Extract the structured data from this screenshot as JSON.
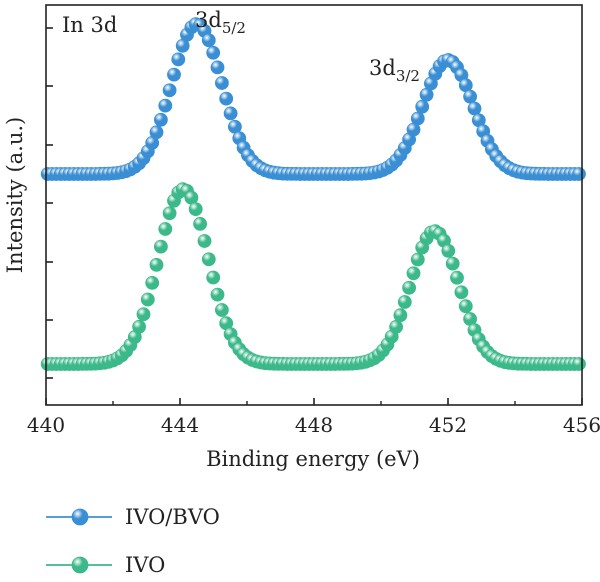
{
  "chart_data": {
    "type": "scatter",
    "panel_label": "In 3d",
    "xlabel": "Binding energy (eV)",
    "ylabel": "Intensity (a.u.)",
    "xlim": [
      440,
      456
    ],
    "x_ticks": [
      "440",
      "444",
      "448",
      "452",
      "456"
    ],
    "y_ticks_visible": false,
    "grid": false,
    "legend_position": "bottom",
    "series": [
      {
        "name": "IVO/BVO",
        "color": "#3a8fd4",
        "baseline": 0.0,
        "peaks": [
          {
            "label": "3d",
            "label_sub": "5/2",
            "center": 444.5,
            "height": 1.0,
            "width": 0.75
          },
          {
            "label": "3d",
            "label_sub": "3/2",
            "center": 452.0,
            "height": 0.76,
            "width": 0.75
          }
        ]
      },
      {
        "name": "IVO",
        "color": "#3cb98a",
        "baseline": 0.0,
        "peaks": [
          {
            "center": 444.1,
            "height": 1.0,
            "width": 0.75
          },
          {
            "center": 451.6,
            "height": 0.76,
            "width": 0.72
          }
        ]
      }
    ]
  }
}
